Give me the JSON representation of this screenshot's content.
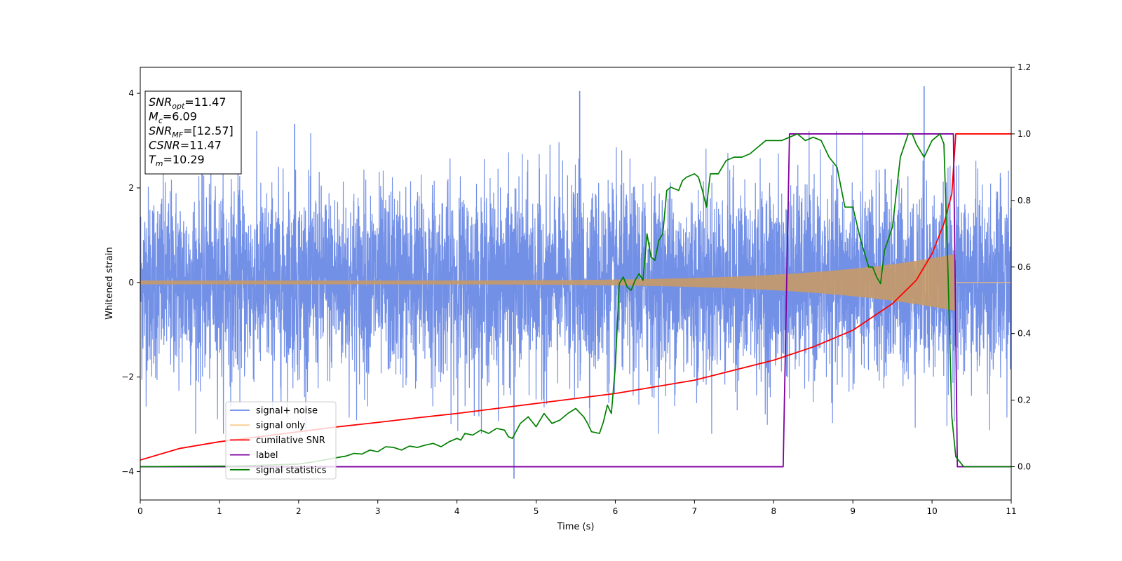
{
  "chart_data": {
    "type": "line",
    "xlabel": "Time (s)",
    "ylabel_left": "Whitened strain",
    "xlim": [
      0,
      11
    ],
    "ylim_left": [
      -4.6,
      4.55
    ],
    "ylim_right": [
      -0.1,
      1.2
    ],
    "x_ticks": [
      0,
      1,
      2,
      3,
      4,
      5,
      6,
      7,
      8,
      9,
      10,
      11
    ],
    "y_ticks_left": [
      -4,
      -2,
      0,
      2,
      4
    ],
    "y_ticks_right": [
      "0.0",
      "0.2",
      "0.4",
      "0.6",
      "0.8",
      "1.0",
      "1.2"
    ],
    "grid": false,
    "legend_position": "lower-left",
    "annotation": [
      {
        "base": "SNR",
        "sub": "opt",
        "value": "=11.47"
      },
      {
        "base": "M",
        "sub": "c",
        "value": "=6.09"
      },
      {
        "base": "SNR",
        "sub": "MF",
        "value": "=[12.57]"
      },
      {
        "base": "CSNR",
        "sub": "",
        "value": "=11.47"
      },
      {
        "base": "T",
        "sub": "m",
        "value": "=10.29"
      }
    ],
    "series": [
      {
        "name": "signal+ noise",
        "color": "#6b8ae6",
        "axis": "left",
        "noise_sigma": 1.0,
        "extreme_peaks": [
          [
            5.55,
            4.05
          ],
          [
            9.9,
            4.15
          ],
          [
            4.72,
            -4.15
          ],
          [
            1.95,
            3.35
          ]
        ]
      },
      {
        "name": "signal only",
        "color": "#f7c86a",
        "axis": "left",
        "chirp_start_amp": 0.04,
        "chirp_end_amp": 0.6,
        "merger_time": 10.29
      },
      {
        "name": "cumilative SNR",
        "color": "#ff0000",
        "axis": "right",
        "x": [
          0,
          0.5,
          1,
          1.5,
          2,
          2.5,
          3,
          3.5,
          4,
          4.5,
          5,
          5.5,
          6,
          6.5,
          7,
          7.5,
          8,
          8.5,
          9,
          9.5,
          9.8,
          10,
          10.15,
          10.25,
          10.3,
          11
        ],
        "y": [
          0.02,
          0.055,
          0.075,
          0.09,
          0.105,
          0.12,
          0.133,
          0.147,
          0.16,
          0.175,
          0.19,
          0.205,
          0.22,
          0.24,
          0.26,
          0.29,
          0.32,
          0.36,
          0.41,
          0.49,
          0.56,
          0.64,
          0.73,
          0.82,
          1.0,
          1.0
        ]
      },
      {
        "name": "label",
        "color": "#8000a0",
        "axis": "right",
        "x": [
          0,
          8.12,
          8.2,
          10.27,
          10.32,
          11
        ],
        "y": [
          0.0,
          0.0,
          1.0,
          1.0,
          0.0,
          0.0
        ]
      },
      {
        "name": "signal statistics",
        "color": "#008000",
        "axis": "right",
        "x": [
          0,
          1.2,
          1.5,
          2.0,
          2.2,
          2.5,
          2.6,
          2.7,
          2.8,
          2.9,
          3.0,
          3.1,
          3.2,
          3.3,
          3.4,
          3.5,
          3.6,
          3.7,
          3.8,
          3.9,
          4.0,
          4.05,
          4.1,
          4.2,
          4.3,
          4.4,
          4.5,
          4.6,
          4.65,
          4.7,
          4.8,
          4.9,
          5.0,
          5.1,
          5.2,
          5.3,
          5.4,
          5.5,
          5.6,
          5.65,
          5.7,
          5.8,
          5.85,
          5.9,
          5.95,
          6.0,
          6.05,
          6.1,
          6.15,
          6.2,
          6.25,
          6.3,
          6.35,
          6.4,
          6.45,
          6.5,
          6.55,
          6.6,
          6.65,
          6.7,
          6.8,
          6.85,
          6.9,
          7.0,
          7.05,
          7.1,
          7.15,
          7.2,
          7.3,
          7.4,
          7.5,
          7.6,
          7.7,
          7.8,
          7.9,
          8.0,
          8.1,
          8.2,
          8.3,
          8.4,
          8.5,
          8.6,
          8.7,
          8.8,
          8.9,
          9.0,
          9.1,
          9.2,
          9.25,
          9.3,
          9.35,
          9.4,
          9.5,
          9.6,
          9.7,
          9.75,
          9.8,
          9.9,
          10.0,
          10.1,
          10.15,
          10.2,
          10.25,
          10.3,
          10.35,
          10.4,
          10.5,
          10.7,
          11
        ],
        "y": [
          0.0,
          0.002,
          0.004,
          0.008,
          0.015,
          0.028,
          0.032,
          0.04,
          0.038,
          0.05,
          0.045,
          0.06,
          0.058,
          0.05,
          0.062,
          0.058,
          0.065,
          0.07,
          0.06,
          0.075,
          0.085,
          0.08,
          0.1,
          0.095,
          0.11,
          0.1,
          0.115,
          0.11,
          0.09,
          0.085,
          0.13,
          0.15,
          0.12,
          0.16,
          0.13,
          0.14,
          0.16,
          0.175,
          0.15,
          0.13,
          0.105,
          0.1,
          0.135,
          0.185,
          0.16,
          0.3,
          0.55,
          0.57,
          0.54,
          0.53,
          0.56,
          0.58,
          0.56,
          0.7,
          0.63,
          0.62,
          0.68,
          0.7,
          0.83,
          0.84,
          0.83,
          0.86,
          0.87,
          0.88,
          0.87,
          0.83,
          0.78,
          0.88,
          0.88,
          0.92,
          0.93,
          0.93,
          0.94,
          0.96,
          0.98,
          0.98,
          0.98,
          0.99,
          1.0,
          0.98,
          0.99,
          0.98,
          0.93,
          0.9,
          0.78,
          0.78,
          0.68,
          0.6,
          0.6,
          0.57,
          0.55,
          0.65,
          0.72,
          0.93,
          1.0,
          1.0,
          0.97,
          0.93,
          0.98,
          1.0,
          0.97,
          0.6,
          0.15,
          0.03,
          0.015,
          0.0,
          0.0,
          0.0,
          0.0
        ]
      }
    ]
  }
}
